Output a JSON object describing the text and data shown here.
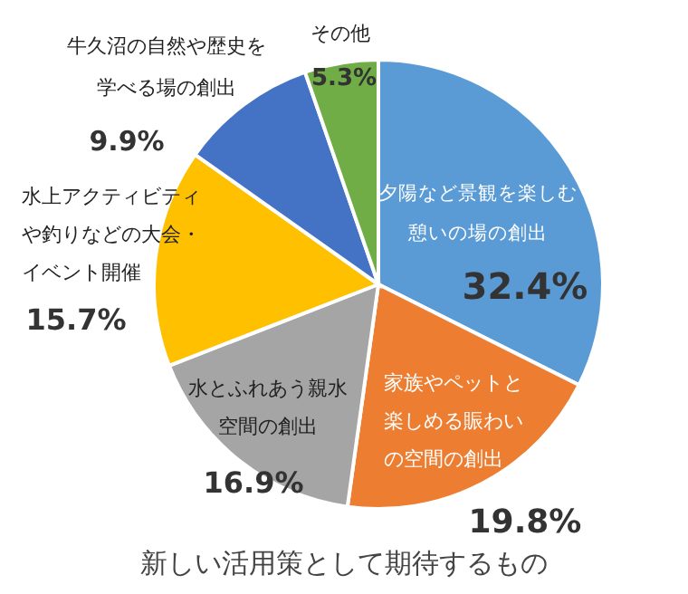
{
  "chart_data": {
    "type": "pie",
    "title": "新しい活用策として期待するもの",
    "categories": [
      "夕陽など景観を楽しむ憩いの場の創出",
      "家族やペットと楽しめる賑わいの空間の創出",
      "水とふれあう親水空間の創出",
      "水上アクティビティや釣りなどの大会・イベント開催",
      "牛久沼の自然や歴史を学べる場の創出",
      "その他"
    ],
    "values": [
      32.4,
      19.8,
      16.9,
      15.7,
      9.9,
      5.3
    ],
    "value_labels": [
      "32.4%",
      "19.8%",
      "16.9%",
      "15.7%",
      "9.9%",
      "5.3%"
    ],
    "colors": [
      "#5b9bd5",
      "#ed7d31",
      "#a5a5a5",
      "#ffc000",
      "#4472c4",
      "#70ad47"
    ]
  }
}
